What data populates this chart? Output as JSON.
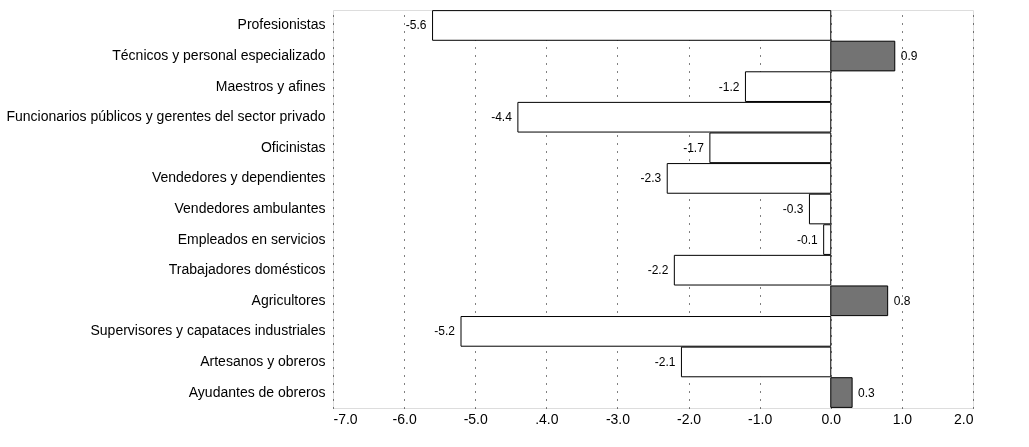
{
  "chart_data": {
    "type": "bar",
    "orientation": "horizontal",
    "categories": [
      "Profesionistas",
      "Técnicos y personal especializado",
      "Maestros y afines",
      "Funcionarios públicos y gerentes del sector privado",
      "Oficinistas",
      "Vendedores y dependientes",
      "Vendedores ambulantes",
      "Empleados en servicios",
      "Trabajadores domésticos",
      "Agricultores",
      "Supervisores y capataces industriales",
      "Artesanos y obreros",
      "Ayudantes de obreros"
    ],
    "values": [
      -5.6,
      0.9,
      -1.2,
      -4.4,
      -1.7,
      -2.3,
      -0.3,
      -0.1,
      -2.2,
      0.8,
      -5.2,
      -2.1,
      0.3
    ],
    "colors": [
      "#ffffff",
      "#737373",
      "#ffffff",
      "#ffffff",
      "#ffffff",
      "#ffffff",
      "#ffffff",
      "#ffffff",
      "#ffffff",
      "#737373",
      "#ffffff",
      "#ffffff",
      "#737373"
    ],
    "xlim": [
      -7,
      2
    ],
    "xticks": [
      {
        "value": -7,
        "label": "-7.0"
      },
      {
        "value": -6,
        "label": "-6.0"
      },
      {
        "value": -5,
        "label": "-5.0"
      },
      {
        "value": -4,
        "label": ".4.0"
      },
      {
        "value": -3,
        "label": "-3.0"
      },
      {
        "value": -2,
        "label": "-2.0"
      },
      {
        "value": -1,
        "label": "-1.0"
      },
      {
        "value": 0,
        "label": "0.0"
      },
      {
        "value": 1,
        "label": "1.0"
      },
      {
        "value": 2,
        "label": "2.0"
      }
    ],
    "grid": "x",
    "data_labels": true
  }
}
